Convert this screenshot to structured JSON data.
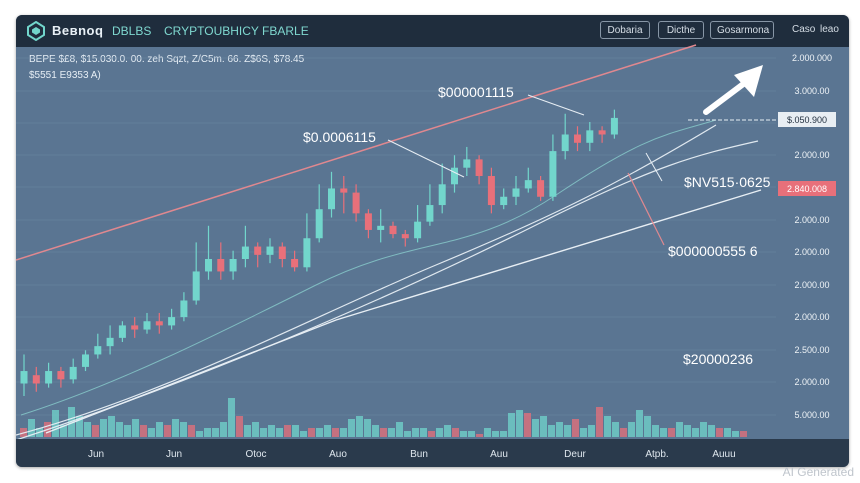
{
  "header": {
    "brand": "Bевnoq",
    "nav_items": [
      "DBLBS",
      "CRYPTOUBHICY FBARLE"
    ],
    "buttons": [
      "Dobaria",
      "Dicthe",
      "Gosarmona"
    ],
    "right_labels": [
      "Caso",
      "leao"
    ]
  },
  "info": {
    "line1": "BEPE  $£8, $15.030.0.  00. zeh Sqzt,  Z/C5m.  66. Z$6S,  $78.45",
    "line2": "$5551 E9353 A)"
  },
  "annotations": {
    "a1": "$000001115",
    "a2": "$0.0006115",
    "a3": "$NV515·0625",
    "a4": "$000000555 6",
    "a5": "$20000236"
  },
  "price_tags": {
    "current": "$.050.900",
    "red": "2.840.008"
  },
  "watermark": "AI Generated",
  "chart_data": {
    "type": "candlestick",
    "x_tick_labels": [
      "Jun",
      "Jun",
      "Otoc",
      "Auo",
      "Bun",
      "Auu",
      "Deur",
      "Atpb.",
      "Auuu"
    ],
    "y_tick_labels": [
      "2.000.000",
      "3.000.00",
      "2.000.00",
      "2.000.00",
      "2.000.00",
      "2.000.00",
      "2.000.00",
      "2.500.00",
      "2.000.00",
      "5.000.00"
    ],
    "candles": [
      {
        "o": 10,
        "c": 13,
        "h": 17,
        "l": 7
      },
      {
        "o": 12,
        "c": 10,
        "h": 14,
        "l": 8
      },
      {
        "o": 10,
        "c": 13,
        "h": 15,
        "l": 9
      },
      {
        "o": 13,
        "c": 11,
        "h": 14,
        "l": 9
      },
      {
        "o": 11,
        "c": 14,
        "h": 16,
        "l": 10
      },
      {
        "o": 14,
        "c": 17,
        "h": 18,
        "l": 13
      },
      {
        "o": 17,
        "c": 19,
        "h": 22,
        "l": 16
      },
      {
        "o": 19,
        "c": 21,
        "h": 24,
        "l": 17
      },
      {
        "o": 21,
        "c": 24,
        "h": 25,
        "l": 20
      },
      {
        "o": 24,
        "c": 23,
        "h": 26,
        "l": 21
      },
      {
        "o": 23,
        "c": 25,
        "h": 27,
        "l": 22
      },
      {
        "o": 25,
        "c": 24,
        "h": 27,
        "l": 22
      },
      {
        "o": 24,
        "c": 26,
        "h": 28,
        "l": 23
      },
      {
        "o": 26,
        "c": 30,
        "h": 32,
        "l": 25
      },
      {
        "o": 30,
        "c": 37,
        "h": 44,
        "l": 29
      },
      {
        "o": 37,
        "c": 40,
        "h": 48,
        "l": 35
      },
      {
        "o": 40,
        "c": 37,
        "h": 44,
        "l": 35
      },
      {
        "o": 37,
        "c": 40,
        "h": 42,
        "l": 35
      },
      {
        "o": 40,
        "c": 43,
        "h": 48,
        "l": 38
      },
      {
        "o": 43,
        "c": 41,
        "h": 44,
        "l": 38
      },
      {
        "o": 41,
        "c": 43,
        "h": 45,
        "l": 39
      },
      {
        "o": 43,
        "c": 40,
        "h": 44,
        "l": 38
      },
      {
        "o": 40,
        "c": 38,
        "h": 42,
        "l": 37
      },
      {
        "o": 38,
        "c": 45,
        "h": 51,
        "l": 37
      },
      {
        "o": 45,
        "c": 52,
        "h": 58,
        "l": 44
      },
      {
        "o": 52,
        "c": 57,
        "h": 61,
        "l": 50
      },
      {
        "o": 57,
        "c": 56,
        "h": 60,
        "l": 51
      },
      {
        "o": 56,
        "c": 51,
        "h": 58,
        "l": 49
      },
      {
        "o": 51,
        "c": 47,
        "h": 52,
        "l": 45
      },
      {
        "o": 47,
        "c": 48,
        "h": 52,
        "l": 44
      },
      {
        "o": 48,
        "c": 46,
        "h": 49,
        "l": 45
      },
      {
        "o": 46,
        "c": 45,
        "h": 47,
        "l": 43
      },
      {
        "o": 45,
        "c": 49,
        "h": 53,
        "l": 44
      },
      {
        "o": 49,
        "c": 53,
        "h": 58,
        "l": 48
      },
      {
        "o": 53,
        "c": 58,
        "h": 63,
        "l": 51
      },
      {
        "o": 58,
        "c": 62,
        "h": 65,
        "l": 56
      },
      {
        "o": 62,
        "c": 64,
        "h": 67,
        "l": 60
      },
      {
        "o": 64,
        "c": 60,
        "h": 65,
        "l": 58
      },
      {
        "o": 60,
        "c": 53,
        "h": 62,
        "l": 51
      },
      {
        "o": 53,
        "c": 55,
        "h": 57,
        "l": 52
      },
      {
        "o": 55,
        "c": 57,
        "h": 60,
        "l": 53
      },
      {
        "o": 57,
        "c": 59,
        "h": 62,
        "l": 56
      },
      {
        "o": 59,
        "c": 55,
        "h": 60,
        "l": 54
      },
      {
        "o": 55,
        "c": 66,
        "h": 70,
        "l": 54
      },
      {
        "o": 66,
        "c": 70,
        "h": 75,
        "l": 64
      },
      {
        "o": 70,
        "c": 68,
        "h": 72,
        "l": 66
      },
      {
        "o": 68,
        "c": 71,
        "h": 73,
        "l": 66
      },
      {
        "o": 71,
        "c": 70,
        "h": 72,
        "l": 68
      },
      {
        "o": 70,
        "c": 74,
        "h": 76,
        "l": 69
      }
    ],
    "volume": [
      3,
      6,
      3,
      5,
      9,
      4,
      10,
      7,
      5,
      4,
      6,
      7,
      5,
      4,
      6,
      4,
      3,
      5,
      4,
      6,
      5,
      4,
      2,
      3,
      3,
      5,
      13,
      7,
      4,
      5,
      3,
      4,
      3,
      4,
      4,
      2,
      3,
      3,
      4,
      3,
      3,
      6,
      7,
      6,
      4,
      3,
      3,
      5,
      2,
      3,
      3,
      2,
      3,
      4,
      3,
      2,
      2,
      1,
      3,
      2,
      2,
      8,
      9,
      8,
      6,
      7,
      4,
      5,
      4,
      6,
      3,
      4,
      10,
      7,
      5,
      3,
      5,
      9,
      7,
      4,
      3,
      3,
      5,
      4,
      3,
      5,
      4,
      3,
      3,
      2,
      2
    ],
    "colors": {
      "up": "#72d6cc",
      "down": "#e8707a",
      "background": "#5a7592"
    }
  }
}
